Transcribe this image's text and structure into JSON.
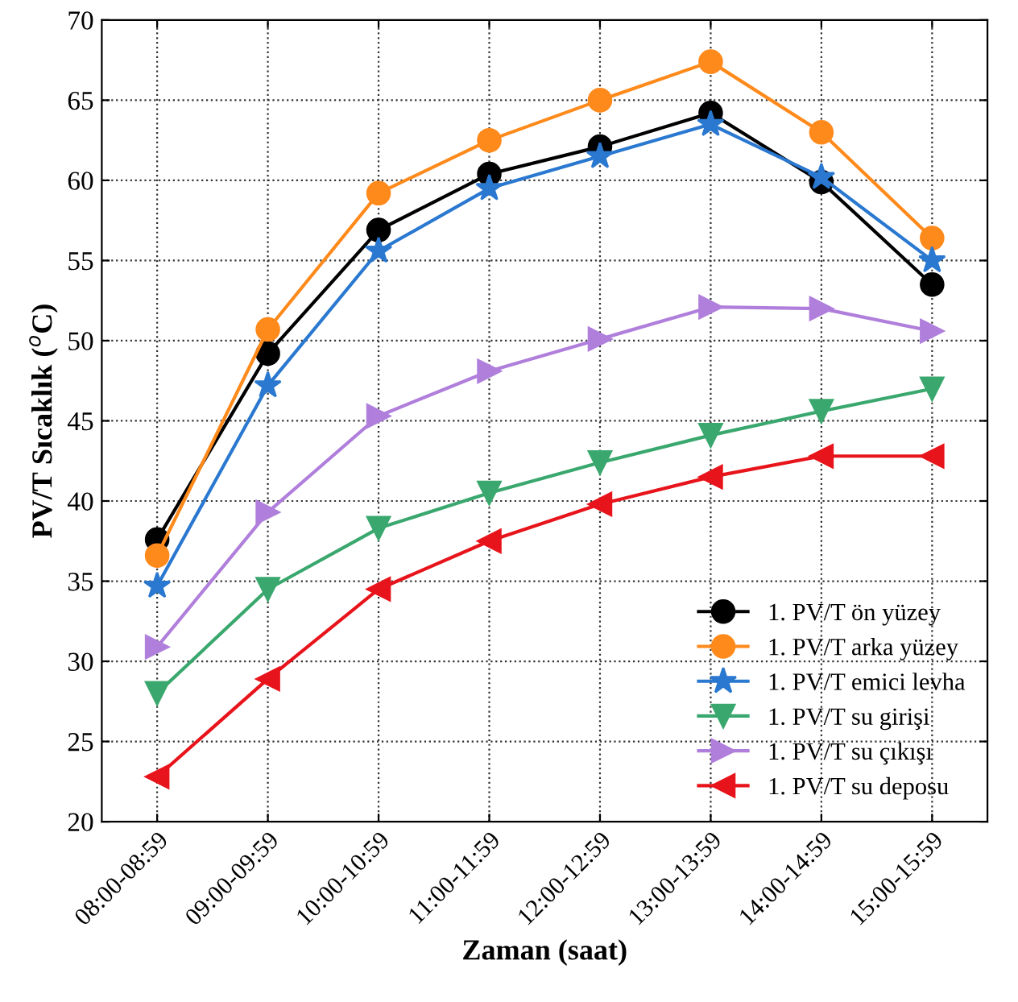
{
  "chart_data": {
    "type": "line",
    "xlabel": "Zaman (saat)",
    "ylabel": "PV/T Sıcaklık ($^{o}$C)",
    "categories": [
      "08:00-08:59",
      "09:00-09:59",
      "10:00-10:59",
      "11:00-11:59",
      "12:00-12:59",
      "13:00-13:59",
      "14:00-14:59",
      "15:00-15:59"
    ],
    "ylim": [
      20,
      70
    ],
    "yticks": [
      20,
      25,
      30,
      35,
      40,
      45,
      50,
      55,
      60,
      65,
      70
    ],
    "grid": true,
    "legend": "bottom right",
    "line_style": "solid",
    "series": [
      {
        "name": "1. PV/T ön yüzey",
        "color": "#000000",
        "marker": "circle",
        "values": [
          37.6,
          49.2,
          56.9,
          60.4,
          62.1,
          64.2,
          59.9,
          53.5
        ]
      },
      {
        "name": "1. PV/T arka yüzey",
        "color": "#ff8a1c",
        "marker": "circle",
        "values": [
          36.6,
          50.7,
          59.2,
          62.5,
          65.0,
          67.4,
          63.0,
          56.4
        ]
      },
      {
        "name": "1. PV/T emici levha",
        "color": "#2a78d0",
        "marker": "star",
        "values": [
          34.7,
          47.2,
          55.6,
          59.5,
          61.5,
          63.5,
          60.2,
          55.0
        ]
      },
      {
        "name": "1. PV/T su girişi",
        "color": "#3aa86e",
        "marker": "triangle",
        "values": [
          28.0,
          34.5,
          38.3,
          40.5,
          42.4,
          44.1,
          45.6,
          47.0
        ]
      },
      {
        "name": "1. PV/T su çıkışı",
        "color": "#b07fdc",
        "marker": "triangle",
        "values": [
          30.9,
          39.3,
          45.3,
          48.1,
          50.1,
          52.1,
          52.0,
          50.6
        ]
      },
      {
        "name": "1. PV/T su deposu",
        "color": "#e8141b",
        "marker": "triangle",
        "values": [
          22.8,
          28.9,
          34.5,
          37.5,
          39.8,
          41.5,
          42.8,
          42.8
        ]
      }
    ]
  }
}
